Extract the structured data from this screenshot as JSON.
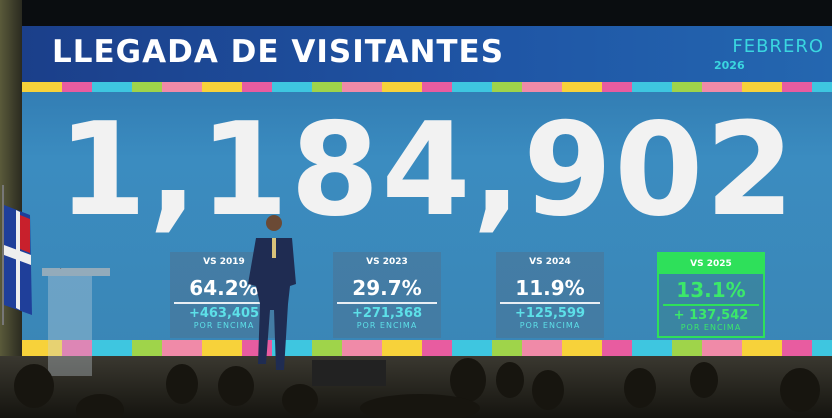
{
  "screen": {
    "title": "LLEGADA DE VISITANTES",
    "month": "FEBRERO",
    "year": "2026",
    "total": "1,184,902",
    "comparisons": [
      {
        "label": "VS 2019",
        "percent": "64.2%",
        "delta": "+463,405",
        "note": "POR ENCIMA"
      },
      {
        "label": "VS 2023",
        "percent": "29.7%",
        "delta": "+271,368",
        "note": "POR ENCIMA"
      },
      {
        "label": "VS 2024",
        "percent": "11.9%",
        "delta": "+125,599",
        "note": "POR ENCIMA"
      },
      {
        "label": "VS 2025",
        "percent": "13.1%",
        "delta": "+ 137,542",
        "note": "POR ENCIMA",
        "highlight": true
      }
    ]
  },
  "colors": {
    "header": "#1f56a6",
    "accent_cyan": "#3ad6e0",
    "highlight_green": "#2ee05a"
  }
}
